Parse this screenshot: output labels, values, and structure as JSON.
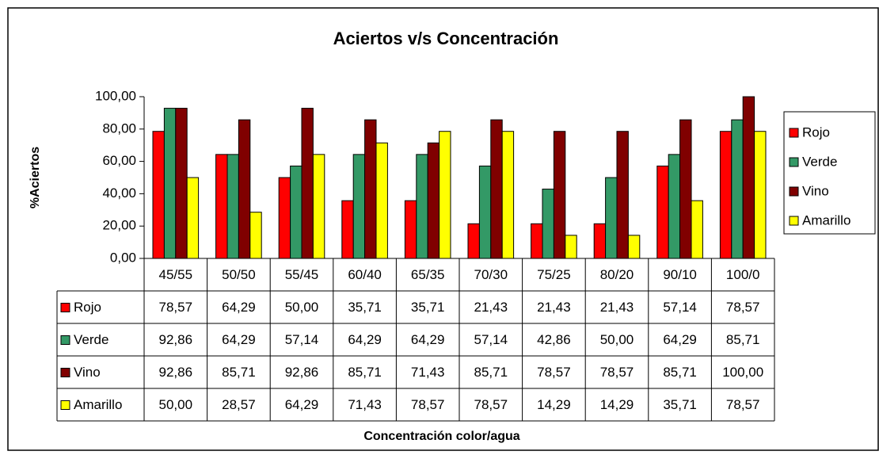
{
  "chart_data": {
    "type": "bar",
    "title": "Aciertos v/s Concentración",
    "x_label": "Concentración color/agua",
    "y_label": "%Aciertos",
    "categories": [
      "45/55",
      "50/50",
      "55/45",
      "60/40",
      "65/35",
      "70/30",
      "75/25",
      "80/20",
      "90/10",
      "100/0"
    ],
    "series": [
      {
        "name": "Rojo",
        "color": "#ff0000",
        "values": [
          78.57,
          64.29,
          50.0,
          35.71,
          35.71,
          21.43,
          21.43,
          21.43,
          57.14,
          78.57
        ],
        "value_labels": [
          "78,57",
          "64,29",
          "50,00",
          "35,71",
          "35,71",
          "21,43",
          "21,43",
          "21,43",
          "57,14",
          "78,57"
        ]
      },
      {
        "name": "Verde",
        "color": "#339966",
        "values": [
          92.86,
          64.29,
          57.14,
          64.29,
          64.29,
          57.14,
          42.86,
          50.0,
          64.29,
          85.71
        ],
        "value_labels": [
          "92,86",
          "64,29",
          "57,14",
          "64,29",
          "64,29",
          "57,14",
          "42,86",
          "50,00",
          "64,29",
          "85,71"
        ]
      },
      {
        "name": "Vino",
        "color": "#800000",
        "values": [
          92.86,
          85.71,
          92.86,
          85.71,
          71.43,
          85.71,
          78.57,
          78.57,
          85.71,
          100.0
        ],
        "value_labels": [
          "92,86",
          "85,71",
          "92,86",
          "85,71",
          "71,43",
          "85,71",
          "78,57",
          "78,57",
          "85,71",
          "100,00"
        ]
      },
      {
        "name": "Amarillo",
        "color": "#ffff00",
        "values": [
          50.0,
          28.57,
          64.29,
          71.43,
          78.57,
          78.57,
          14.29,
          14.29,
          35.71,
          78.57
        ],
        "value_labels": [
          "50,00",
          "28,57",
          "64,29",
          "71,43",
          "78,57",
          "78,57",
          "14,29",
          "14,29",
          "35,71",
          "78,57"
        ]
      }
    ],
    "ylim": [
      0,
      100
    ],
    "yticks": [
      {
        "value": 0,
        "label": "0,00"
      },
      {
        "value": 20,
        "label": "20,00"
      },
      {
        "value": 40,
        "label": "40,00"
      },
      {
        "value": 60,
        "label": "60,00"
      },
      {
        "value": 80,
        "label": "80,00"
      },
      {
        "value": 100,
        "label": "100,00"
      }
    ],
    "grid": false,
    "legend": "right"
  }
}
